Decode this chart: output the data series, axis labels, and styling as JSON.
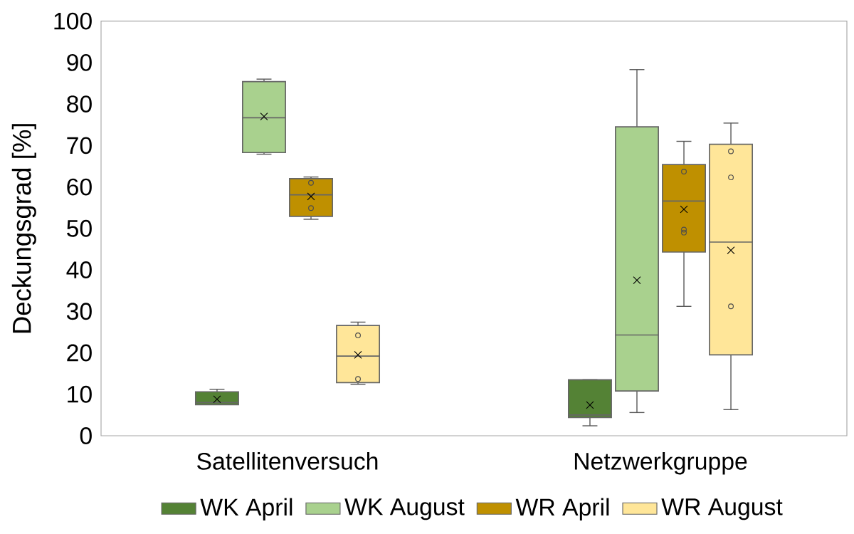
{
  "chart_data": {
    "type": "box",
    "ylabel": "Deckungsgrad [%]",
    "categories": [
      "Satellitenversuch",
      "Netzwerkgruppe"
    ],
    "ylim": [
      0,
      100
    ],
    "yticks": [
      0,
      10,
      20,
      30,
      40,
      50,
      60,
      70,
      80,
      90,
      100
    ],
    "grid": false,
    "legend": "bottom",
    "series": [
      {
        "name": "WK April",
        "color": "#548235",
        "boxes": [
          {
            "low": 7.5,
            "q1": 7.5,
            "median": 8.0,
            "q3": 10.6,
            "high": 11.2,
            "mean": 8.8
          },
          {
            "low": 2.4,
            "q1": 4.4,
            "median": 5.0,
            "q3": 13.5,
            "high": 13.5,
            "mean": 7.4
          }
        ]
      },
      {
        "name": "WK August",
        "color": "#a9d18e",
        "boxes": [
          {
            "low": 67.9,
            "q1": 68.3,
            "median": 76.7,
            "q3": 85.4,
            "high": 86.0,
            "mean": 77.0
          },
          {
            "low": 5.6,
            "q1": 10.8,
            "median": 24.3,
            "q3": 74.5,
            "high": 88.3,
            "mean": 37.5
          }
        ]
      },
      {
        "name": "WR April",
        "color": "#bf9000",
        "boxes": [
          {
            "low": 52.2,
            "q1": 52.9,
            "median": 58.1,
            "q3": 62.0,
            "high": 62.4,
            "mean": 57.7,
            "outliers": [
              61.0,
              54.9
            ]
          },
          {
            "low": 31.2,
            "q1": 44.3,
            "median": 56.6,
            "q3": 65.4,
            "high": 71.0,
            "mean": 54.6,
            "outliers": [
              63.7,
              49.7,
              49.0
            ]
          }
        ]
      },
      {
        "name": "WR August",
        "color": "#ffe699",
        "boxes": [
          {
            "low": 12.4,
            "q1": 12.8,
            "median": 19.2,
            "q3": 26.6,
            "high": 27.4,
            "mean": 19.5,
            "outliers": [
              24.2,
              13.7
            ]
          },
          {
            "low": 6.3,
            "q1": 19.5,
            "median": 46.7,
            "q3": 70.3,
            "high": 75.4,
            "mean": 44.7,
            "outliers": [
              68.6,
              62.3,
              31.2
            ]
          }
        ]
      }
    ]
  }
}
